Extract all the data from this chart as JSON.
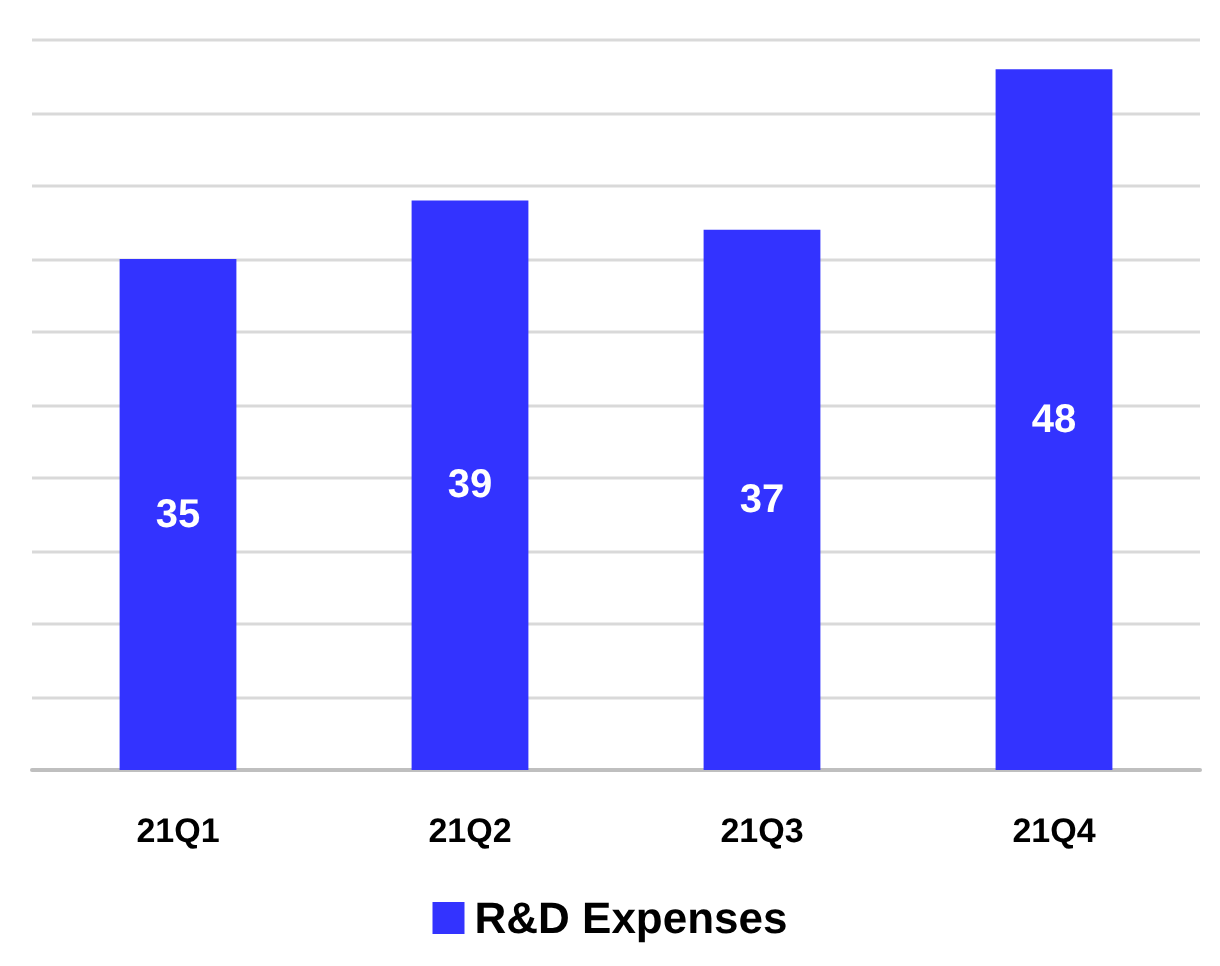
{
  "chart_data": {
    "type": "bar",
    "categories": [
      "21Q1",
      "21Q2",
      "21Q3",
      "21Q4"
    ],
    "series": [
      {
        "name": "R&D Expenses",
        "color": "#3333ff",
        "values": [
          35,
          39,
          37,
          48
        ]
      }
    ],
    "ylim": [
      0,
      50
    ],
    "yticks": [
      {
        "value": 0,
        "label": null
      },
      {
        "value": 5,
        "label": null
      },
      {
        "value": 10,
        "label": null
      },
      {
        "value": 15,
        "label": null
      },
      {
        "value": 20,
        "label": null
      },
      {
        "value": 25,
        "label": null
      },
      {
        "value": 30,
        "label": null
      },
      {
        "value": 35,
        "label": null
      },
      {
        "value": 40,
        "label": null
      },
      {
        "value": 45,
        "label": null
      },
      {
        "value": 50,
        "label": null
      }
    ],
    "tick_labels": "x",
    "grid": "y",
    "legend": "bottom",
    "data_labels": true
  }
}
